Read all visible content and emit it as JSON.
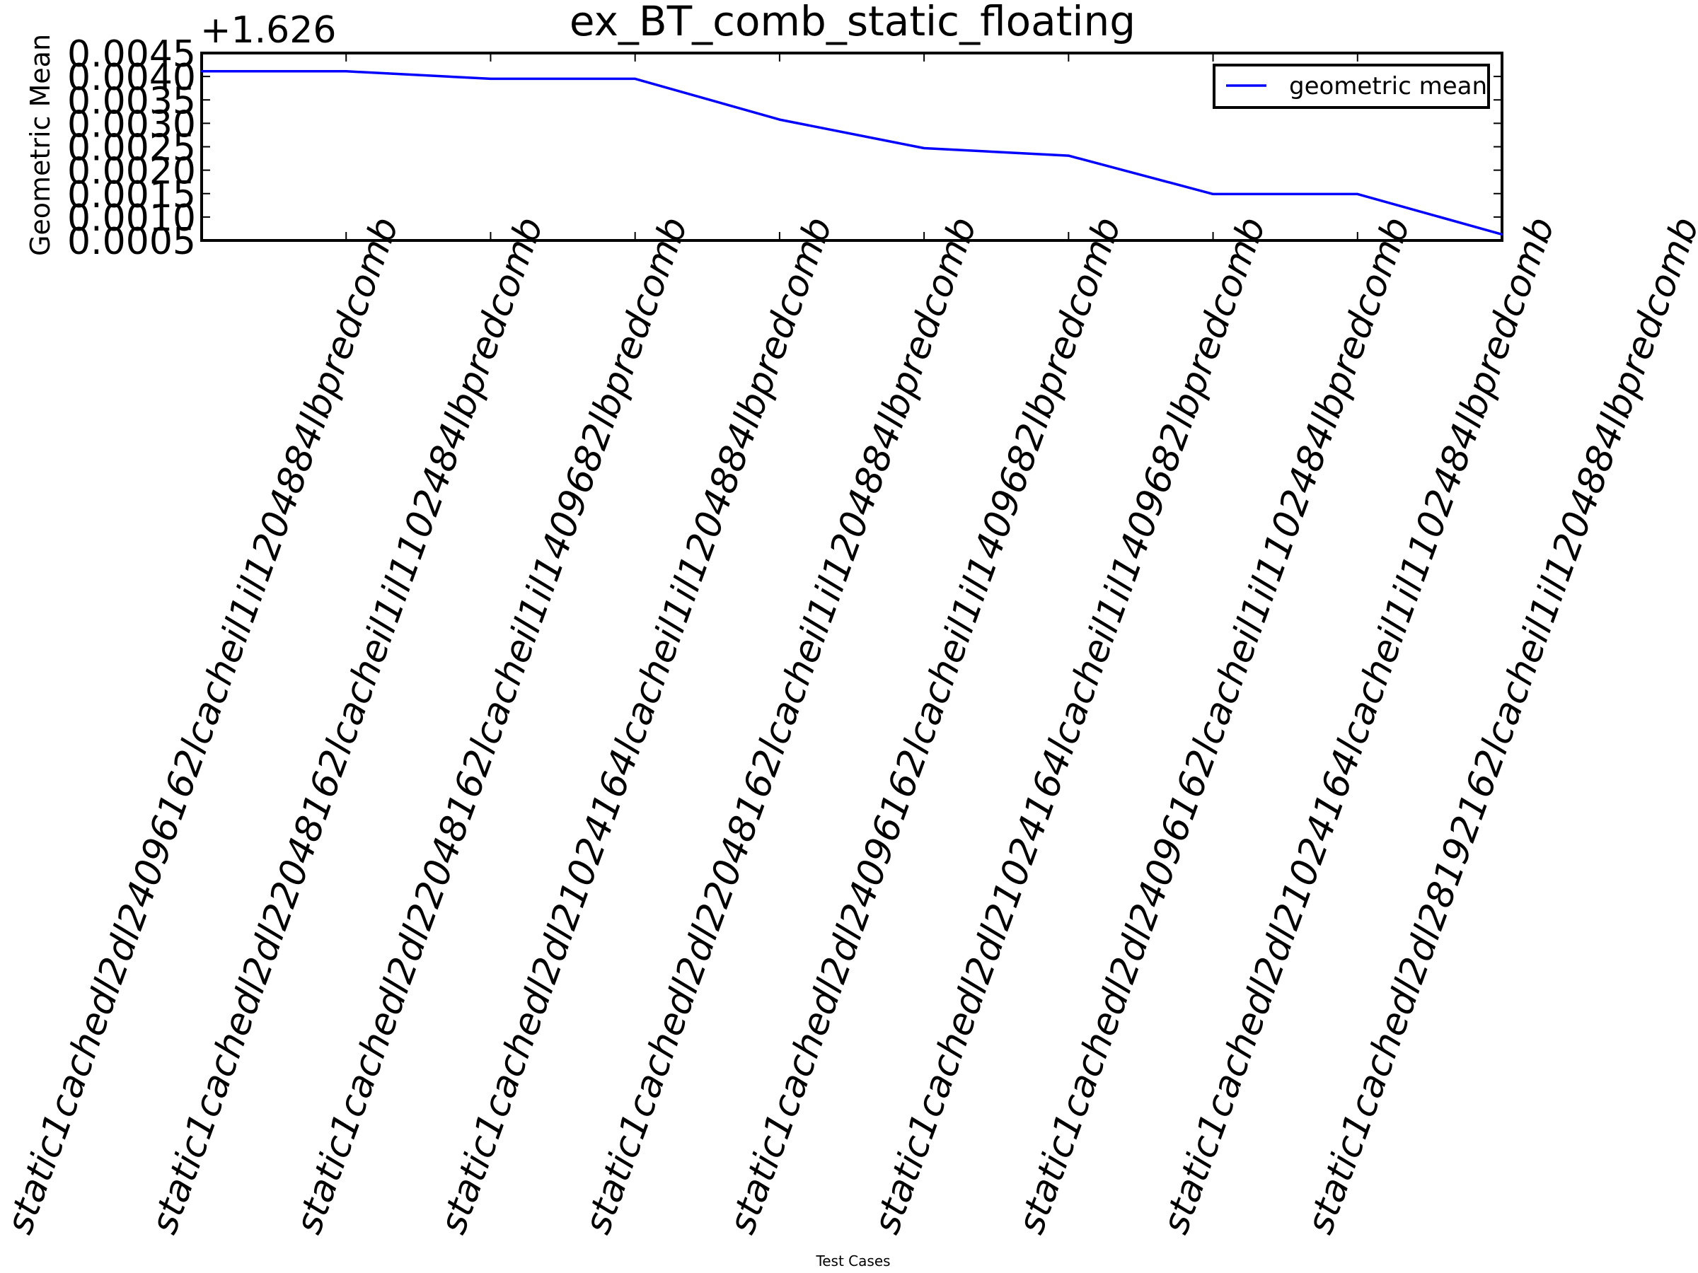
{
  "chart_data": {
    "type": "line",
    "title": "ex_BT_comb_static_floating",
    "xlabel": "Test Cases",
    "ylabel": "Geometric Mean",
    "y_offset_label": "+1.626",
    "categories": [
      "static1cachedl2dl24096162lcacheil1il1204884lbpredcomb",
      "static1cachedl2dl22048162lcacheil1il1102484lbpredcomb",
      "static1cachedl2dl22048162lcacheil1il1409682lbpredcomb",
      "static1cachedl2dl21024164lcacheil1il1204884lbpredcomb",
      "static1cachedl2dl22048162lcacheil1il1204884lbpredcomb",
      "static1cachedl2dl24096162lcacheil1il1409682lbpredcomb",
      "static1cachedl2dl21024164lcacheil1il1409682lbpredcomb",
      "static1cachedl2dl24096162lcacheil1il1102484lbpredcomb",
      "static1cachedl2dl21024164lcacheil1il1102484lbpredcomb",
      "static1cachedl2dl28192162lcacheil1il1204884lbpredcomb"
    ],
    "series": [
      {
        "name": "geometric mean",
        "color": "#0000ff",
        "values": [
          1.63011,
          1.63011,
          1.62995,
          1.62995,
          1.62908,
          1.62847,
          1.62831,
          1.62749,
          1.62749,
          1.62663
        ]
      }
    ],
    "y_offset": 1.626,
    "ylim": [
      0.0005,
      0.0045
    ],
    "yticks": [
      "0.0005",
      "0.0010",
      "0.0015",
      "0.0020",
      "0.0025",
      "0.0030",
      "0.0035",
      "0.0040",
      "0.0045"
    ],
    "grid": false,
    "legend_position": "top-right"
  }
}
